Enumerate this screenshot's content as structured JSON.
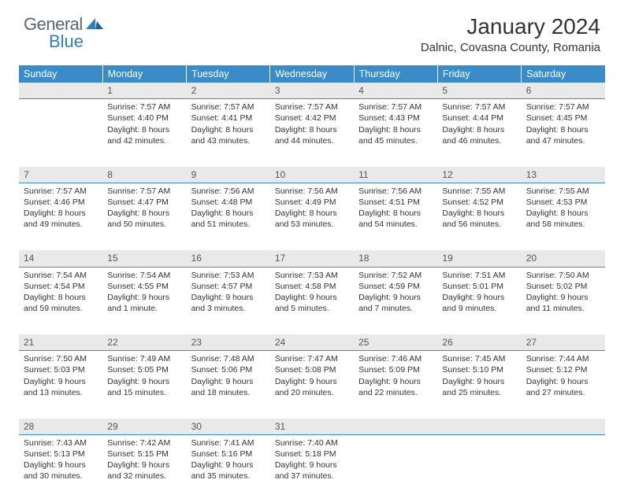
{
  "brand": {
    "part1": "General",
    "part2": "Blue"
  },
  "title": "January 2024",
  "location": "Dalnic, Covasna County, Romania",
  "colors": {
    "header_bg": "#3b8bc9",
    "header_text": "#ffffff",
    "daybar_bg": "#e9e9e9",
    "day_divider": "#3b8bc9",
    "logo_gray": "#5a6570",
    "logo_blue": "#2f7fc1",
    "body_bg": "#ffffff",
    "text": "#333333"
  },
  "typography": {
    "title_fontsize": 28,
    "location_fontsize": 15,
    "header_fontsize": 12.5,
    "cell_fontsize": 10.5,
    "daynum_fontsize": 12
  },
  "weekdays": [
    "Sunday",
    "Monday",
    "Tuesday",
    "Wednesday",
    "Thursday",
    "Friday",
    "Saturday"
  ],
  "weeks": [
    [
      null,
      {
        "n": "1",
        "sunrise": "7:57 AM",
        "sunset": "4:40 PM",
        "dl1": "Daylight: 8 hours",
        "dl2": "and 42 minutes."
      },
      {
        "n": "2",
        "sunrise": "7:57 AM",
        "sunset": "4:41 PM",
        "dl1": "Daylight: 8 hours",
        "dl2": "and 43 minutes."
      },
      {
        "n": "3",
        "sunrise": "7:57 AM",
        "sunset": "4:42 PM",
        "dl1": "Daylight: 8 hours",
        "dl2": "and 44 minutes."
      },
      {
        "n": "4",
        "sunrise": "7:57 AM",
        "sunset": "4:43 PM",
        "dl1": "Daylight: 8 hours",
        "dl2": "and 45 minutes."
      },
      {
        "n": "5",
        "sunrise": "7:57 AM",
        "sunset": "4:44 PM",
        "dl1": "Daylight: 8 hours",
        "dl2": "and 46 minutes."
      },
      {
        "n": "6",
        "sunrise": "7:57 AM",
        "sunset": "4:45 PM",
        "dl1": "Daylight: 8 hours",
        "dl2": "and 47 minutes."
      }
    ],
    [
      {
        "n": "7",
        "sunrise": "7:57 AM",
        "sunset": "4:46 PM",
        "dl1": "Daylight: 8 hours",
        "dl2": "and 49 minutes."
      },
      {
        "n": "8",
        "sunrise": "7:57 AM",
        "sunset": "4:47 PM",
        "dl1": "Daylight: 8 hours",
        "dl2": "and 50 minutes."
      },
      {
        "n": "9",
        "sunrise": "7:56 AM",
        "sunset": "4:48 PM",
        "dl1": "Daylight: 8 hours",
        "dl2": "and 51 minutes."
      },
      {
        "n": "10",
        "sunrise": "7:56 AM",
        "sunset": "4:49 PM",
        "dl1": "Daylight: 8 hours",
        "dl2": "and 53 minutes."
      },
      {
        "n": "11",
        "sunrise": "7:56 AM",
        "sunset": "4:51 PM",
        "dl1": "Daylight: 8 hours",
        "dl2": "and 54 minutes."
      },
      {
        "n": "12",
        "sunrise": "7:55 AM",
        "sunset": "4:52 PM",
        "dl1": "Daylight: 8 hours",
        "dl2": "and 56 minutes."
      },
      {
        "n": "13",
        "sunrise": "7:55 AM",
        "sunset": "4:53 PM",
        "dl1": "Daylight: 8 hours",
        "dl2": "and 58 minutes."
      }
    ],
    [
      {
        "n": "14",
        "sunrise": "7:54 AM",
        "sunset": "4:54 PM",
        "dl1": "Daylight: 8 hours",
        "dl2": "and 59 minutes."
      },
      {
        "n": "15",
        "sunrise": "7:54 AM",
        "sunset": "4:55 PM",
        "dl1": "Daylight: 9 hours",
        "dl2": "and 1 minute."
      },
      {
        "n": "16",
        "sunrise": "7:53 AM",
        "sunset": "4:57 PM",
        "dl1": "Daylight: 9 hours",
        "dl2": "and 3 minutes."
      },
      {
        "n": "17",
        "sunrise": "7:53 AM",
        "sunset": "4:58 PM",
        "dl1": "Daylight: 9 hours",
        "dl2": "and 5 minutes."
      },
      {
        "n": "18",
        "sunrise": "7:52 AM",
        "sunset": "4:59 PM",
        "dl1": "Daylight: 9 hours",
        "dl2": "and 7 minutes."
      },
      {
        "n": "19",
        "sunrise": "7:51 AM",
        "sunset": "5:01 PM",
        "dl1": "Daylight: 9 hours",
        "dl2": "and 9 minutes."
      },
      {
        "n": "20",
        "sunrise": "7:50 AM",
        "sunset": "5:02 PM",
        "dl1": "Daylight: 9 hours",
        "dl2": "and 11 minutes."
      }
    ],
    [
      {
        "n": "21",
        "sunrise": "7:50 AM",
        "sunset": "5:03 PM",
        "dl1": "Daylight: 9 hours",
        "dl2": "and 13 minutes."
      },
      {
        "n": "22",
        "sunrise": "7:49 AM",
        "sunset": "5:05 PM",
        "dl1": "Daylight: 9 hours",
        "dl2": "and 15 minutes."
      },
      {
        "n": "23",
        "sunrise": "7:48 AM",
        "sunset": "5:06 PM",
        "dl1": "Daylight: 9 hours",
        "dl2": "and 18 minutes."
      },
      {
        "n": "24",
        "sunrise": "7:47 AM",
        "sunset": "5:08 PM",
        "dl1": "Daylight: 9 hours",
        "dl2": "and 20 minutes."
      },
      {
        "n": "25",
        "sunrise": "7:46 AM",
        "sunset": "5:09 PM",
        "dl1": "Daylight: 9 hours",
        "dl2": "and 22 minutes."
      },
      {
        "n": "26",
        "sunrise": "7:45 AM",
        "sunset": "5:10 PM",
        "dl1": "Daylight: 9 hours",
        "dl2": "and 25 minutes."
      },
      {
        "n": "27",
        "sunrise": "7:44 AM",
        "sunset": "5:12 PM",
        "dl1": "Daylight: 9 hours",
        "dl2": "and 27 minutes."
      }
    ],
    [
      {
        "n": "28",
        "sunrise": "7:43 AM",
        "sunset": "5:13 PM",
        "dl1": "Daylight: 9 hours",
        "dl2": "and 30 minutes."
      },
      {
        "n": "29",
        "sunrise": "7:42 AM",
        "sunset": "5:15 PM",
        "dl1": "Daylight: 9 hours",
        "dl2": "and 32 minutes."
      },
      {
        "n": "30",
        "sunrise": "7:41 AM",
        "sunset": "5:16 PM",
        "dl1": "Daylight: 9 hours",
        "dl2": "and 35 minutes."
      },
      {
        "n": "31",
        "sunrise": "7:40 AM",
        "sunset": "5:18 PM",
        "dl1": "Daylight: 9 hours",
        "dl2": "and 37 minutes."
      },
      null,
      null,
      null
    ]
  ]
}
